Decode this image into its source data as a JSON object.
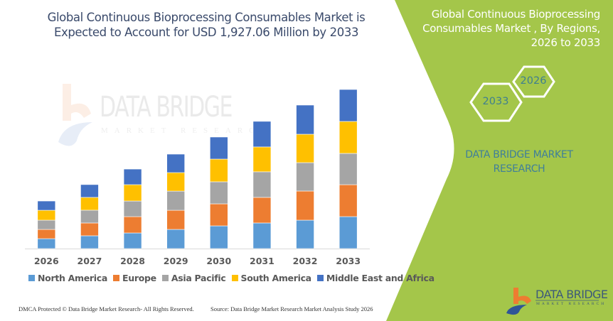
{
  "header": {
    "title_line1": "Global Continuous Bioprocessing Consumables Market is",
    "title_line2": "Expected to Account for USD 1,927.06 Million by 2033"
  },
  "side_panel": {
    "title_line1": "Global Continuous Bioprocessing",
    "title_line2": "Consumables Market , By Regions,",
    "title_line3": "2026 to 2033",
    "hex_start": "2026",
    "hex_end": "2033",
    "brand_line1": "DATA BRIDGE MARKET",
    "brand_line2": "RESEARCH",
    "panel_color": "#a4c64a"
  },
  "watermark": {
    "name": "DATA BRIDGE",
    "subtitle": "MARKET RESEARCH"
  },
  "logo": {
    "name": "DATA BRIDGE",
    "subtitle": "MARKET RESEARCH"
  },
  "footer": {
    "copyright": "DMCA Protected © Data Bridge Market Research- All Rights Reserved.",
    "source": "Source: Data Bridge Market Research Market Analysis Study 2026"
  },
  "chart_data": {
    "type": "bar",
    "stacked": true,
    "title": "Global Continuous Bioprocessing Consumables Market is Expected to Account for USD 1,927.06 Million by 2033",
    "xlabel": "",
    "ylabel": "",
    "unit": "USD Million (estimated, no y-axis shown)",
    "categories": [
      "2026",
      "2027",
      "2028",
      "2029",
      "2030",
      "2031",
      "2032",
      "2033"
    ],
    "ylim": [
      0,
      1927.06
    ],
    "grid": false,
    "legend_position": "bottom",
    "series": [
      {
        "name": "North America",
        "color": "#5b9bd5",
        "values": [
          120,
          155,
          189,
          232,
          275,
          310,
          344,
          387
        ]
      },
      {
        "name": "Europe",
        "color": "#ed7d31",
        "values": [
          112,
          155,
          198,
          232,
          267,
          310,
          353,
          387
        ]
      },
      {
        "name": "Asia Pacific",
        "color": "#a5a5a5",
        "values": [
          112,
          155,
          189,
          232,
          267,
          310,
          344,
          379
        ]
      },
      {
        "name": "South America",
        "color": "#ffc000",
        "values": [
          120,
          155,
          198,
          224,
          275,
          301,
          344,
          387
        ]
      },
      {
        "name": "Middle East and Africa",
        "color": "#4472c4",
        "values": [
          112,
          155,
          189,
          224,
          267,
          310,
          353,
          387
        ]
      }
    ]
  }
}
